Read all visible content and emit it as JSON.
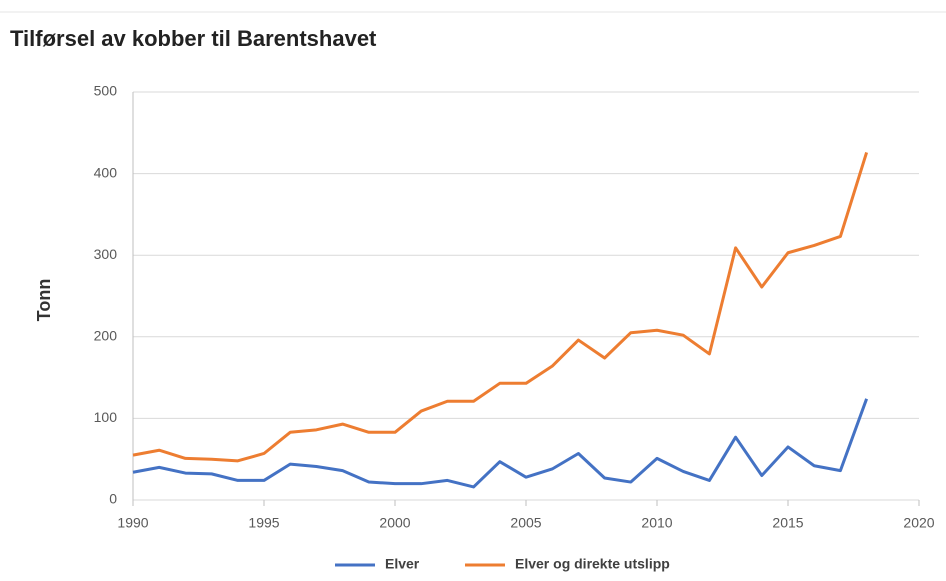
{
  "chart_data": {
    "type": "line",
    "title": "Tilførsel av kobber til Barentshavet",
    "ylabel": "Tonn",
    "x": [
      1990,
      1991,
      1992,
      1993,
      1994,
      1995,
      1996,
      1997,
      1998,
      1999,
      2000,
      2001,
      2002,
      2003,
      2004,
      2005,
      2006,
      2007,
      2008,
      2009,
      2010,
      2011,
      2012,
      2013,
      2014,
      2015,
      2016,
      2017,
      2018
    ],
    "series": [
      {
        "name": "Elver",
        "color": "#4472c4",
        "values": [
          34,
          40,
          33,
          32,
          24,
          24,
          44,
          41,
          36,
          22,
          20,
          20,
          24,
          16,
          47,
          28,
          38,
          57,
          27,
          22,
          51,
          35,
          24,
          77,
          30,
          65,
          42,
          36,
          124
        ]
      },
      {
        "name": "Elver og direkte utslipp",
        "color": "#ed7d31",
        "values": [
          55,
          61,
          51,
          50,
          48,
          57,
          83,
          86,
          93,
          83,
          83,
          109,
          121,
          121,
          143,
          143,
          164,
          196,
          174,
          205,
          208,
          202,
          179,
          309,
          261,
          303,
          312,
          323,
          426
        ]
      }
    ],
    "xlim": [
      1990,
      2020
    ],
    "xticks": [
      1990,
      1995,
      2000,
      2005,
      2010,
      2015,
      2020
    ],
    "ylim": [
      0,
      500
    ],
    "yticks": [
      0,
      100,
      200,
      300,
      400,
      500
    ],
    "grid": true,
    "legend": "bottom"
  }
}
